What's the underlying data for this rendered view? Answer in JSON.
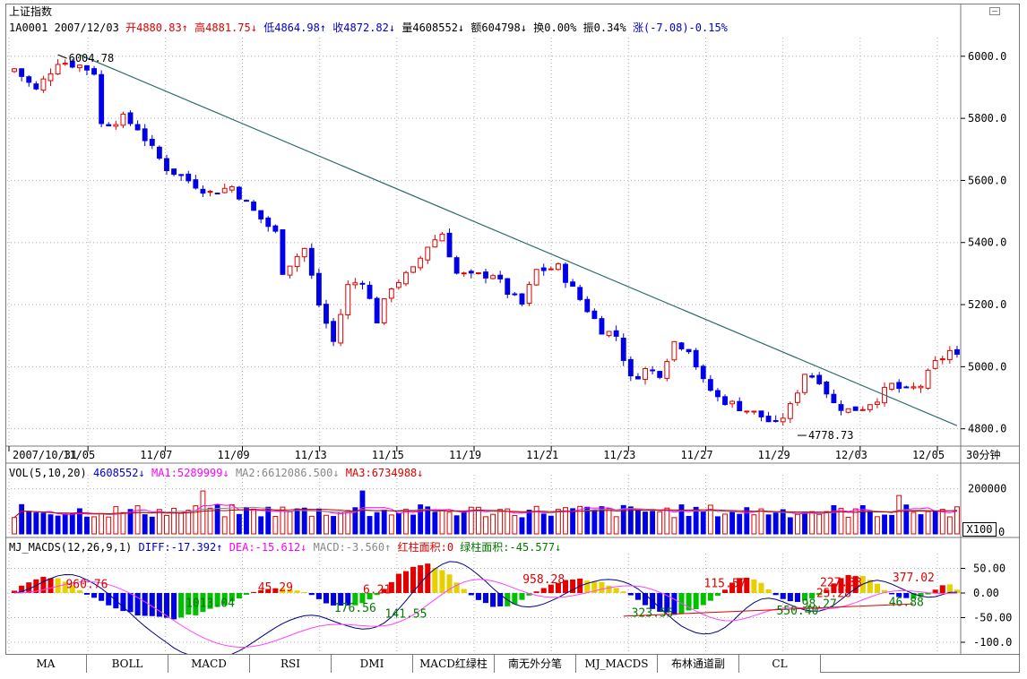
{
  "chart_data": {
    "type": "candlestick",
    "title": "上证指数",
    "header": {
      "code": "1A0001",
      "date": "2007/12/03",
      "open_label": "开",
      "open": "4880.83",
      "open_arrow": "↑",
      "high_label": "高",
      "high": "4881.75",
      "high_arrow": "↓",
      "low_label": "低",
      "low": "4864.98",
      "low_arrow": "↑",
      "close_label": "收",
      "close": "4872.82",
      "close_arrow": "↓",
      "volume_label": "量",
      "volume": "4608552",
      "volume_arrow": "↓",
      "amount_label": "额",
      "amount": "604798",
      "amount_arrow": "↓",
      "turnover_label": "换",
      "turnover": "0.00%",
      "amplitude_label": "振",
      "amplitude": "0.34%",
      "change": "涨(-7.08)-0.15%"
    },
    "price_axis": {
      "ticks": [
        6000.0,
        5800.0,
        5600.0,
        5400.0,
        5200.0,
        5000.0,
        4800.0
      ],
      "tick_labels": [
        "6000.0",
        "5800.0",
        "5600.0",
        "5400.0",
        "5200.0",
        "5000.0",
        "4800.0"
      ],
      "ylim": [
        4750,
        6060
      ]
    },
    "x_ticks": [
      "2007/10/31",
      "11/05",
      "11/07",
      "11/09",
      "11/13",
      "11/15",
      "11/19",
      "11/21",
      "11/23",
      "11/27",
      "11/29",
      "12/03",
      "12/05"
    ],
    "period_label": "30分钟",
    "annotations": [
      {
        "text": "6004.78",
        "value": 6004.78,
        "bar": 6
      },
      {
        "text": "4778.73",
        "value": 4778.73,
        "bar": 108
      }
    ],
    "trendline": {
      "from": {
        "bar": 9,
        "value": 6004.78
      },
      "to": {
        "bar": 130,
        "value": 4810
      }
    },
    "price_bars": 131,
    "price_path": [
      [
        0,
        5960
      ],
      [
        3,
        5890
      ],
      [
        6,
        5985
      ],
      [
        9,
        5970
      ],
      [
        11,
        5950
      ],
      [
        12,
        5780
      ],
      [
        15,
        5800
      ],
      [
        17,
        5770
      ],
      [
        19,
        5700
      ],
      [
        21,
        5640
      ],
      [
        24,
        5600
      ],
      [
        27,
        5560
      ],
      [
        30,
        5580
      ],
      [
        33,
        5500
      ],
      [
        36,
        5430
      ],
      [
        37,
        5310
      ],
      [
        40,
        5380
      ],
      [
        42,
        5200
      ],
      [
        44,
        5080
      ],
      [
        46,
        5260
      ],
      [
        48,
        5280
      ],
      [
        50,
        5150
      ],
      [
        52,
        5260
      ],
      [
        55,
        5310
      ],
      [
        57,
        5390
      ],
      [
        59,
        5430
      ],
      [
        61,
        5300
      ],
      [
        63,
        5290
      ],
      [
        66,
        5300
      ],
      [
        68,
        5240
      ],
      [
        70,
        5200
      ],
      [
        72,
        5310
      ],
      [
        75,
        5320
      ],
      [
        77,
        5250
      ],
      [
        81,
        5120
      ],
      [
        83,
        5100
      ],
      [
        85,
        4960
      ],
      [
        87,
        4990
      ],
      [
        89,
        4980
      ],
      [
        91,
        5080
      ],
      [
        93,
        5060
      ],
      [
        95,
        4950
      ],
      [
        97,
        4900
      ],
      [
        99,
        4880
      ],
      [
        101,
        4860
      ],
      [
        103,
        4840
      ],
      [
        105,
        4810
      ],
      [
        107,
        4870
      ],
      [
        109,
        4980
      ],
      [
        111,
        4960
      ],
      [
        113,
        4880
      ],
      [
        115,
        4860
      ],
      [
        117,
        4870
      ],
      [
        119,
        4900
      ],
      [
        121,
        4940
      ],
      [
        123,
        4920
      ],
      [
        125,
        4940
      ],
      [
        127,
        5010
      ],
      [
        129,
        5050
      ],
      [
        130,
        5030
      ]
    ],
    "volume_panel": {
      "indicator": "VOL(5,10,20)",
      "value": "4608552",
      "value_arrow": "↓",
      "ma1_label": "MA1:",
      "ma1": "5289999",
      "ma1_arrow": "↓",
      "ma2_label": "MA2:",
      "ma2": "6612086.500",
      "ma2_arrow": "↓",
      "ma3_label": "MA3:",
      "ma3": "6734988",
      "ma3_arrow": "↓",
      "ticks": [
        "200000",
        "0"
      ],
      "unit_box": "X100",
      "ylim": [
        0,
        230000
      ]
    },
    "macds_panel": {
      "indicator": "MJ_MACDS(12,26,9,1)",
      "diff_label": "DIFF:",
      "diff": "-17.392",
      "diff_arrow": "↑",
      "dea_label": "DEA:",
      "dea": "-15.612",
      "dea_arrow": "↓",
      "macd_label": "MACD:",
      "macd": "-3.560",
      "macd_arrow": "↑",
      "red_area_label": "红柱面积:",
      "red_area": "0",
      "green_area_label": "绿柱面积:",
      "green_area": "-45.577",
      "green_area_arrow": "↓",
      "ticks": [
        "50.00",
        "0.00",
        "-50.00",
        "-100.0"
      ],
      "ylim": [
        -120,
        80
      ],
      "area_labels": [
        {
          "text": "960.76",
          "color": "red"
        },
        {
          "text": "1013.04",
          "color": "green"
        },
        {
          "text": "45.29",
          "color": "red"
        },
        {
          "text": "176.56",
          "color": "green"
        },
        {
          "text": "6.21",
          "color": "red"
        },
        {
          "text": "141.55",
          "color": "green"
        },
        {
          "text": "958.28",
          "color": "red"
        },
        {
          "text": "323.55",
          "color": "green"
        },
        {
          "text": "115.57",
          "color": "red"
        },
        {
          "text": "550.40",
          "color": "green"
        },
        {
          "text": "227.33",
          "color": "red"
        },
        {
          "text": "98.27",
          "color": "green"
        },
        {
          "text": "25.28",
          "color": "red"
        },
        {
          "text": "377.02",
          "color": "red"
        },
        {
          "text": "46.88",
          "color": "green"
        }
      ]
    }
  },
  "tabs": [
    "MA",
    "BOLL",
    "MACD",
    "RSI",
    "DMI",
    "MACD红绿柱",
    "南无外分笔",
    "MJ_MACDS",
    "布林通道副",
    "CL"
  ],
  "colors": {
    "up": "#e00000",
    "down": "#0000e8",
    "trendline": "#2e6b6b",
    "grid": "#b0b0b0",
    "macd_pos": "#e00000",
    "macd_warn": "#e6d000",
    "macd_neg_strong": "#0000e8",
    "macd_neg_weak": "#00c000",
    "diff_line": "#ff44ff",
    "dea_line": "#000080"
  }
}
